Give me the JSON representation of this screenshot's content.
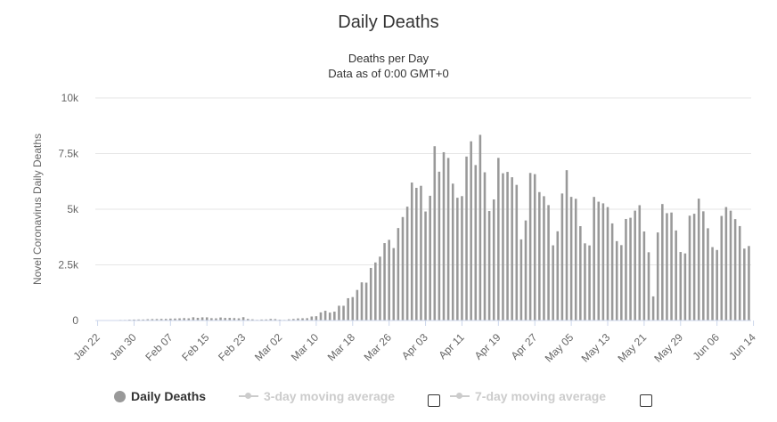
{
  "chart_data": {
    "type": "bar",
    "title": "Daily Deaths",
    "subtitle_line1": "Deaths per Day",
    "subtitle_line2": "Data as of 0:00 GMT+0",
    "ylabel": "Novel Coronavirus Daily Deaths",
    "ylim": [
      0,
      10000
    ],
    "y_ticks": [
      "0",
      "2.5k",
      "5k",
      "7.5k",
      "10k"
    ],
    "y_tick_values": [
      0,
      2500,
      5000,
      7500,
      10000
    ],
    "x_tick_labels": [
      "Jan 22",
      "Jan 30",
      "Feb 07",
      "Feb 15",
      "Feb 23",
      "Mar 02",
      "Mar 10",
      "Mar 18",
      "Mar 26",
      "Apr 03",
      "Apr 11",
      "Apr 19",
      "Apr 27",
      "May 05",
      "May 13",
      "May 21",
      "May 29",
      "Jun 06",
      "Jun 14"
    ],
    "start_date": "Jan 22",
    "series": [
      {
        "name": "Daily Deaths",
        "color": "#999999",
        "values": [
          17,
          0,
          8,
          16,
          14,
          26,
          26,
          38,
          43,
          46,
          45,
          57,
          64,
          66,
          73,
          73,
          86,
          89,
          97,
          108,
          97,
          146,
          121,
          143,
          142,
          105,
          98,
          136,
          115,
          118,
          109,
          97,
          150,
          71,
          52,
          29,
          44,
          47,
          71,
          64,
          37,
          27,
          53,
          69,
          94,
          100,
          105,
          180,
          193,
          365,
          438,
          356,
          398,
          664,
          662,
          1002,
          1053,
          1373,
          1715,
          1700,
          2362,
          2608,
          2870,
          3478,
          3624,
          3254,
          4155,
          4649,
          5115,
          6199,
          5961,
          6052,
          4898,
          5605,
          7831,
          6686,
          7562,
          7304,
          6150,
          5515,
          5589,
          7366,
          8051,
          6984,
          8342,
          6659,
          4919,
          5440,
          7306,
          6616,
          6677,
          6437,
          6094,
          3645,
          4496,
          6630,
          6576,
          5770,
          5585,
          5185,
          3378,
          4009,
          5706,
          6754,
          5555,
          5469,
          4240,
          3467,
          3374,
          5553,
          5338,
          5264,
          5096,
          4363,
          3566,
          3387,
          4561,
          4616,
          4936,
          5181,
          4001,
          3066,
          1084,
          3957,
          5233,
          4823,
          4852,
          4046,
          3078,
          3014,
          4710,
          4796,
          5476,
          4906,
          4145,
          3297,
          3168,
          4698,
          5097,
          4934,
          4555,
          4243,
          3231,
          3347
        ]
      }
    ],
    "legend": [
      {
        "label": "Daily Deaths",
        "active": true
      },
      {
        "label": "3-day moving average",
        "active": false
      },
      {
        "label": "7-day moving average",
        "active": false
      }
    ],
    "grid": true,
    "legend_position": "bottom"
  }
}
